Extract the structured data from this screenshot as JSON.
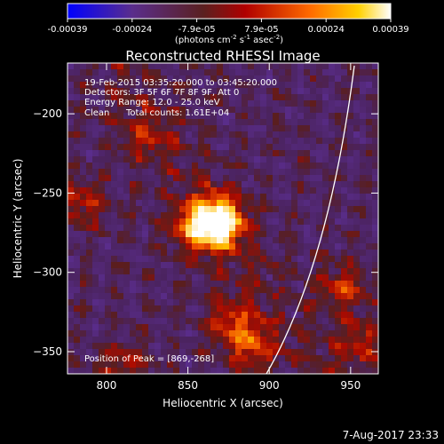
{
  "chart_data": {
    "type": "heatmap",
    "title": "Reconstructed RHESSI Image",
    "xlabel": "Heliocentric X (arcsec)",
    "ylabel": "Heliocentric Y (arcsec)",
    "x_ticks": [
      "800",
      "850",
      "900",
      "950"
    ],
    "y_ticks": [
      "-200",
      "-250",
      "-300",
      "-350"
    ],
    "xlim": [
      776,
      967
    ],
    "ylim": [
      -364,
      -168
    ],
    "colorbar": {
      "ticks": [
        "-0.00039",
        "-0.00024",
        "-7.9e-05",
        "7.9e-05",
        "0.00024",
        "0.00039"
      ],
      "range": [
        -0.00039,
        0.00039
      ],
      "label": "(photons cm",
      "label_exp1": "-2",
      "label_mid": " s",
      "label_exp2": "-1",
      "label_mid2": " asec",
      "label_exp3": "-2",
      "label_end": ")"
    },
    "info": {
      "time": "19-Feb-2015 03:35:20.000 to 03:45:20.000",
      "detectors": "Detectors: 3F 5F 6F 7F 8F 9F, Att 0",
      "energy": "Energy Range: 12.0 - 25.0 keV",
      "method": "Clean",
      "counts": "Total counts: 1.61E+04"
    },
    "peak_label": "Position of Peak = [869,-268]",
    "peak": [
      869,
      -268
    ],
    "sources": [
      {
        "x": 869,
        "y": -268,
        "amp": 1.0
      },
      {
        "x": 855,
        "y": -272,
        "amp": 0.55
      },
      {
        "x": 888,
        "y": -345,
        "amp": 0.45
      },
      {
        "x": 876,
        "y": -330,
        "amp": 0.35
      },
      {
        "x": 945,
        "y": -310,
        "amp": 0.4
      },
      {
        "x": 955,
        "y": -345,
        "amp": 0.35
      },
      {
        "x": 785,
        "y": -255,
        "amp": 0.35
      },
      {
        "x": 810,
        "y": -360,
        "amp": 0.3
      },
      {
        "x": 825,
        "y": -215,
        "amp": 0.25
      }
    ],
    "date": "7-Aug-2017 23:33"
  }
}
